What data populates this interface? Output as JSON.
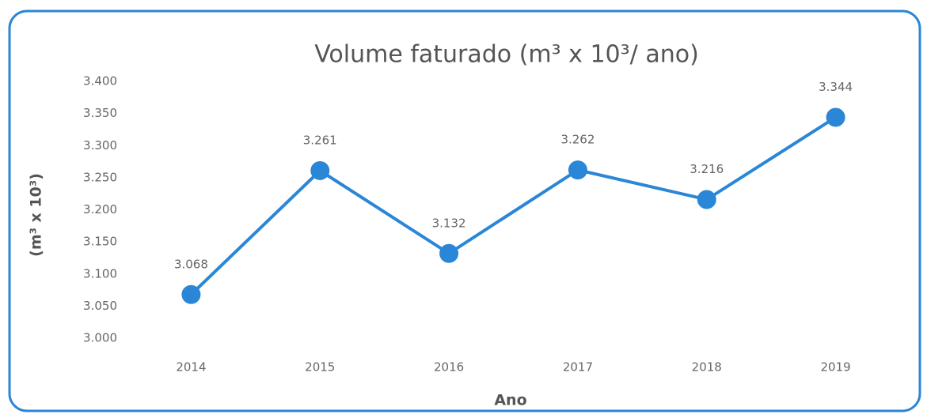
{
  "chart_data": {
    "type": "line",
    "title": "Volume faturado (m³ x 10³/ ano)",
    "y_label": "(m³ x 10³)",
    "x_label": "Ano",
    "categories": [
      "2014",
      "2015",
      "2016",
      "2017",
      "2018",
      "2019"
    ],
    "values": [
      3068,
      3261,
      3132,
      3262,
      3216,
      3344
    ],
    "value_labels": [
      "3.068",
      "3.261",
      "3.132",
      "3.262",
      "3.216",
      "3.344"
    ],
    "color": "#2a86d6",
    "ylim": [
      3000,
      3400
    ],
    "yticks": [
      {
        "value": 3000,
        "label": "3.000"
      },
      {
        "value": 3050,
        "label": "3.050"
      },
      {
        "value": 3100,
        "label": "3.100"
      },
      {
        "value": 3150,
        "label": "3.150"
      },
      {
        "value": 3200,
        "label": "3.200"
      },
      {
        "value": 3250,
        "label": "3.250"
      },
      {
        "value": 3300,
        "label": "3.300"
      },
      {
        "value": 3350,
        "label": "3.350"
      },
      {
        "value": 3400,
        "label": "3.400"
      }
    ],
    "grid": false
  }
}
